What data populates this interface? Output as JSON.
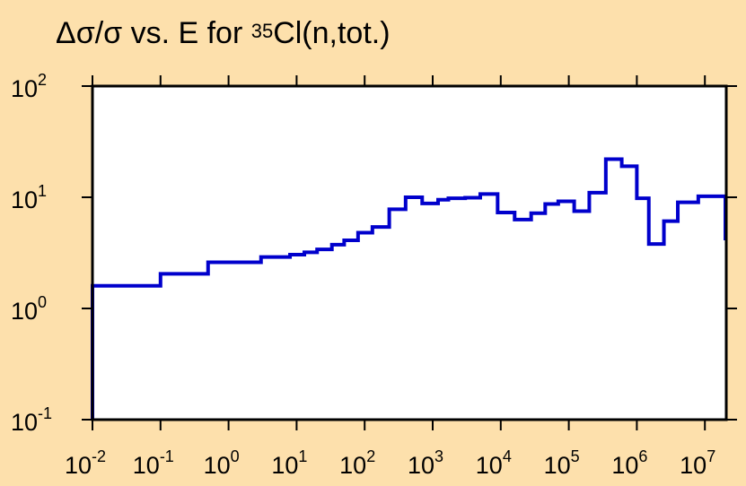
{
  "title": {
    "prefix": "Δσ/σ vs. E for ",
    "superscript": "35",
    "suffix": "Cl(n,tot.)"
  },
  "colors": {
    "background": "#fde0ac",
    "plot_area": "#ffffff",
    "series": "#0000cc",
    "axes": "#000000"
  },
  "chart_data": {
    "type": "line",
    "style": "step",
    "title": "Δσ/σ vs. E for 35Cl(n,tot.)",
    "xlabel": "",
    "ylabel": "",
    "x_scale": "log",
    "y_scale": "log",
    "xlim": [
      0.01,
      20000000
    ],
    "ylim": [
      0.1,
      100
    ],
    "grid": false,
    "x_ticks": [
      {
        "value": 0.01,
        "base": "10",
        "exp": "-2"
      },
      {
        "value": 0.1,
        "base": "10",
        "exp": "-1"
      },
      {
        "value": 1,
        "base": "10",
        "exp": "0"
      },
      {
        "value": 10,
        "base": "10",
        "exp": "1"
      },
      {
        "value": 100,
        "base": "10",
        "exp": "2"
      },
      {
        "value": 1000,
        "base": "10",
        "exp": "3"
      },
      {
        "value": 10000,
        "base": "10",
        "exp": "4"
      },
      {
        "value": 100000,
        "base": "10",
        "exp": "5"
      },
      {
        "value": 1000000,
        "base": "10",
        "exp": "6"
      },
      {
        "value": 10000000,
        "base": "10",
        "exp": "7"
      }
    ],
    "y_ticks": [
      {
        "value": 100,
        "base": "10",
        "exp": "2"
      },
      {
        "value": 10,
        "base": "10",
        "exp": "1"
      },
      {
        "value": 1,
        "base": "10",
        "exp": "0"
      },
      {
        "value": 0.1,
        "base": "10",
        "exp": "-1"
      }
    ],
    "series": [
      {
        "edges": [
          0.01,
          0.1,
          0.5,
          3,
          8,
          13,
          20,
          33,
          50,
          80,
          130,
          230,
          400,
          700,
          1200,
          1700,
          3000,
          5000,
          9000,
          16000,
          28000,
          45000,
          70000,
          120000,
          200000,
          350000,
          600000,
          1000000,
          1500000,
          2500000,
          4000000,
          8000000,
          20000000
        ],
        "values": [
          1.6,
          2.05,
          2.6,
          2.9,
          3.05,
          3.2,
          3.4,
          3.75,
          4.1,
          4.8,
          5.4,
          7.8,
          10.0,
          8.8,
          9.5,
          9.8,
          9.9,
          10.7,
          7.3,
          6.3,
          7.2,
          8.7,
          9.2,
          7.5,
          11.0,
          22.0,
          19.0,
          9.8,
          3.8,
          6.1,
          9.0,
          10.2,
          4.1
        ]
      }
    ]
  }
}
